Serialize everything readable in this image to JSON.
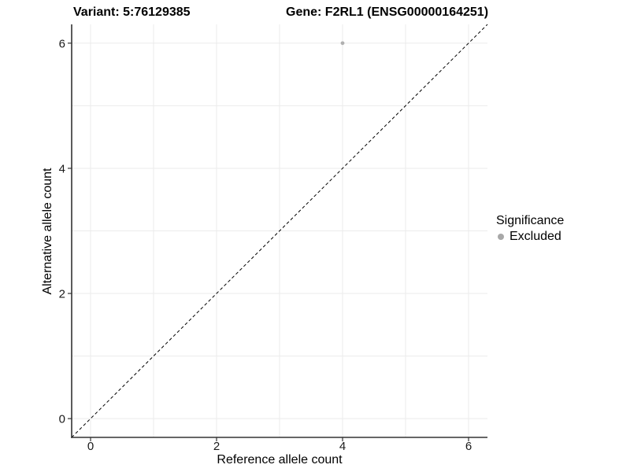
{
  "header": {
    "variant_title": "Variant: 5:76129385",
    "gene_title": "Gene: F2RL1 (ENSG00000164251)"
  },
  "axes": {
    "x_label": "Reference allele count",
    "y_label": "Alternative allele count"
  },
  "legend": {
    "title": "Significance",
    "entries": [
      {
        "label": "Excluded",
        "color": "#a8a8a8"
      }
    ]
  },
  "colors": {
    "grid": "#ebebeb",
    "axis_line": "#333333",
    "tick_text": "#1a1a1a",
    "identity_line": "#000000",
    "point": "#b0b0b0"
  },
  "chart_data": {
    "type": "scatter",
    "title": "Variant: 5:76129385   Gene: F2RL1 (ENSG00000164251)",
    "xlabel": "Reference allele count",
    "ylabel": "Alternative allele count",
    "xlim": [
      -0.3,
      6.3
    ],
    "ylim": [
      -0.3,
      6.3
    ],
    "xticks": [
      0,
      2,
      4,
      6
    ],
    "yticks": [
      0,
      2,
      4,
      6
    ],
    "grid_values": [
      0,
      1,
      2,
      3,
      4,
      5,
      6
    ],
    "grid": "on",
    "legend_position": "right",
    "series": [
      {
        "name": "Excluded",
        "color": "#b0b0b0",
        "points": [
          [
            4,
            6
          ]
        ]
      }
    ],
    "reference_line": {
      "equation": "y = x",
      "style": "dashed",
      "color": "#000000",
      "x": [
        -0.3,
        6.3
      ],
      "y": [
        -0.3,
        6.3
      ]
    }
  }
}
